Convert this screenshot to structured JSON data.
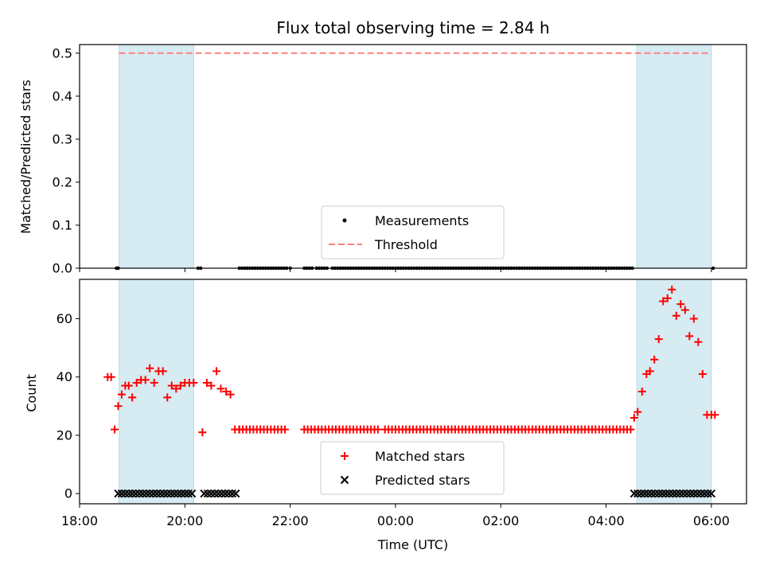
{
  "chart_data": [
    {
      "type": "scatter",
      "title": "Flux total observing time = 2.84 h",
      "ylabel": "Matched/Predicted stars",
      "xlabel": "",
      "xlim": [
        "18:00",
        "06:40"
      ],
      "ylim": [
        0,
        0.52
      ],
      "yticks": [
        "0.0",
        "0.1",
        "0.2",
        "0.3",
        "0.4",
        "0.5"
      ],
      "shaded_intervals": [
        [
          "18:45",
          "20:10"
        ],
        [
          "04:35",
          "05:60"
        ]
      ],
      "threshold": {
        "name": "Threshold",
        "value": 0.5,
        "x_range": [
          "18:45",
          "06:00"
        ],
        "color": "#ff7f7f",
        "style": "dashed"
      },
      "series": [
        {
          "name": "Measurements",
          "marker": "dot",
          "color": "#000000",
          "x": [
            "18:42",
            "18:44",
            "20:15",
            "20:18",
            "21:02",
            "21:05",
            "21:08",
            "21:11",
            "21:14",
            "21:17",
            "21:20",
            "21:23",
            "21:26",
            "21:29",
            "21:32",
            "21:35",
            "21:38",
            "21:41",
            "21:44",
            "21:47",
            "21:50",
            "21:53",
            "21:56",
            "22:00",
            "22:16",
            "22:19",
            "22:22",
            "22:25",
            "22:30",
            "22:33",
            "22:36",
            "22:39",
            "22:42",
            "22:48",
            "22:51",
            "22:54",
            "22:57",
            "23:00",
            "23:03",
            "23:06",
            "23:09",
            "23:12",
            "23:15",
            "23:18",
            "23:21",
            "23:24",
            "23:27",
            "23:30",
            "23:33",
            "23:36",
            "23:39",
            "23:42",
            "23:45",
            "23:48",
            "23:51",
            "23:54",
            "23:57",
            "00:00",
            "00:03",
            "00:06",
            "00:09",
            "00:12",
            "00:15",
            "00:18",
            "00:21",
            "00:24",
            "00:27",
            "00:30",
            "00:33",
            "00:36",
            "00:39",
            "00:42",
            "00:45",
            "00:48",
            "00:51",
            "00:54",
            "00:57",
            "01:00",
            "01:03",
            "01:06",
            "01:09",
            "01:12",
            "01:15",
            "01:18",
            "01:21",
            "01:24",
            "01:27",
            "01:30",
            "01:33",
            "01:36",
            "01:39",
            "01:42",
            "01:45",
            "01:48",
            "01:51",
            "01:54",
            "01:57",
            "02:00",
            "02:03",
            "02:06",
            "02:09",
            "02:12",
            "02:15",
            "02:18",
            "02:21",
            "02:24",
            "02:27",
            "02:30",
            "02:33",
            "02:36",
            "02:39",
            "02:42",
            "02:45",
            "02:48",
            "02:51",
            "02:54",
            "02:57",
            "03:00",
            "03:03",
            "03:06",
            "03:09",
            "03:12",
            "03:15",
            "03:18",
            "03:21",
            "03:24",
            "03:27",
            "03:30",
            "03:33",
            "03:36",
            "03:39",
            "03:42",
            "03:45",
            "03:48",
            "03:51",
            "03:54",
            "03:57",
            "04:00",
            "04:03",
            "04:06",
            "04:09",
            "04:12",
            "04:15",
            "04:18",
            "04:21",
            "04:24",
            "04:27",
            "04:30",
            "06:02"
          ],
          "y_constant": 0.0
        }
      ],
      "legend": {
        "placement": "bottom-center",
        "entries": [
          "Measurements",
          "Threshold"
        ]
      }
    },
    {
      "type": "scatter",
      "title": "",
      "ylabel": "Count",
      "xlabel": "Time (UTC)",
      "xlim": [
        "18:00",
        "06:40"
      ],
      "ylim": [
        -3.5,
        73.5
      ],
      "yticks": [
        "0",
        "20",
        "40",
        "60"
      ],
      "xticks": [
        "18:00",
        "20:00",
        "22:00",
        "00:00",
        "02:00",
        "04:00",
        "06:00"
      ],
      "shaded_intervals": [
        [
          "18:45",
          "20:10"
        ],
        [
          "04:35",
          "05:60"
        ]
      ],
      "series": [
        {
          "name": "Matched stars",
          "marker": "plus",
          "color": "#ff0000",
          "x": [
            "18:32",
            "18:36",
            "18:40",
            "18:44",
            "18:48",
            "18:52",
            "18:56",
            "19:00",
            "19:05",
            "19:10",
            "19:15",
            "19:20",
            "19:25",
            "19:30",
            "19:35",
            "19:40",
            "19:45",
            "19:50",
            "19:55",
            "20:00",
            "20:05",
            "20:10",
            "20:20",
            "20:25",
            "20:30",
            "20:36",
            "20:41",
            "20:47",
            "20:52",
            "20:57",
            "21:02"
          ],
          "y": [
            40,
            40,
            22,
            30,
            34,
            37,
            37,
            33,
            38,
            39,
            39,
            43,
            38,
            42,
            42,
            33,
            37,
            36,
            37,
            38,
            38,
            38,
            21,
            38,
            37,
            42,
            36,
            35,
            34,
            22,
            22
          ],
          "flat_segments": [
            {
              "x_from": "21:02",
              "x_to": "21:56",
              "step_min": 4,
              "y": 22
            },
            {
              "x_from": "22:16",
              "x_to": "22:44",
              "step_min": 4,
              "y": 22
            },
            {
              "x_from": "22:48",
              "x_to": "23:40",
              "step_min": 4,
              "y": 22
            },
            {
              "x_from": "23:48",
              "x_to": "00:08",
              "step_min": 4,
              "y": 22
            },
            {
              "x_from": "00:12",
              "x_to": "04:30",
              "step_min": 4,
              "y": 22
            }
          ],
          "x_late": [
            "04:32",
            "04:36",
            "04:41",
            "04:46",
            "04:50",
            "04:55",
            "05:00",
            "05:05",
            "05:10",
            "05:15",
            "05:20",
            "05:25",
            "05:30",
            "05:35",
            "05:40",
            "05:45",
            "05:50",
            "05:55",
            "06:00",
            "06:04"
          ],
          "y_late": [
            26,
            28,
            35,
            41,
            42,
            46,
            53,
            66,
            67,
            70,
            61,
            65,
            63,
            54,
            60,
            52,
            41,
            27,
            27,
            27
          ]
        },
        {
          "name": "Predicted stars",
          "marker": "x",
          "color": "#000000",
          "y_constant": 0,
          "segments": [
            {
              "x_from": "18:44",
              "x_to": "20:10",
              "step_min": 4
            },
            {
              "x_from": "20:22",
              "x_to": "21:00",
              "step_min": 4
            },
            {
              "x_from": "04:32",
              "x_to": "06:00",
              "step_min": 4
            }
          ]
        }
      ],
      "legend": {
        "placement": "bottom-center",
        "entries": [
          "Matched stars",
          "Predicted stars"
        ]
      }
    }
  ],
  "text": {
    "title": "Flux total observing time = 2.84 h",
    "top_ylabel": "Matched/Predicted stars",
    "bottom_ylabel": "Count",
    "xlabel": "Time (UTC)",
    "legend_top": [
      "Measurements",
      "Threshold"
    ],
    "legend_bottom": [
      "Matched stars",
      "Predicted stars"
    ]
  }
}
